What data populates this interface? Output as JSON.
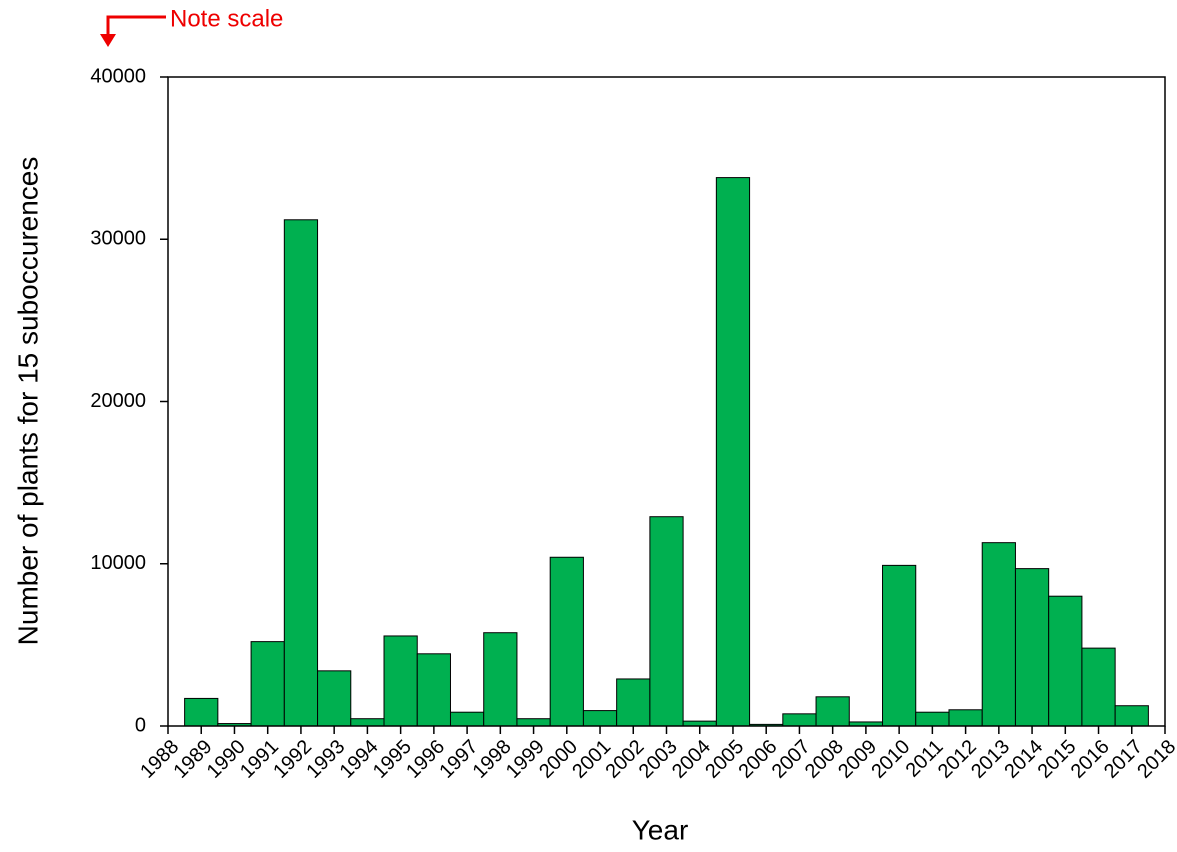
{
  "chart_data": {
    "type": "bar",
    "y_label": "Number of plants for 15 suboccurences",
    "x_label": "Year",
    "annotation": "Note scale",
    "annotation_color": "#ee0000",
    "color": "#00b050",
    "x": [
      1989,
      1990,
      1991,
      1992,
      1993,
      1994,
      1995,
      1996,
      1997,
      1998,
      1999,
      2000,
      2001,
      2002,
      2003,
      2004,
      2005,
      2006,
      2007,
      2008,
      2009,
      2010,
      2011,
      2012,
      2013,
      2014,
      2015,
      2016,
      2017
    ],
    "values": [
      1700,
      150,
      5200,
      31200,
      3400,
      450,
      5550,
      4450,
      850,
      5750,
      450,
      10400,
      950,
      2900,
      12900,
      300,
      33800,
      100,
      750,
      1800,
      250,
      9900,
      850,
      1000,
      11300,
      9700,
      8000,
      4800,
      1250
    ],
    "xlim": [
      1988,
      2018
    ],
    "xticks": [
      1988,
      1989,
      1990,
      1991,
      1992,
      1993,
      1994,
      1995,
      1996,
      1997,
      1998,
      1999,
      2000,
      2001,
      2002,
      2003,
      2004,
      2005,
      2006,
      2007,
      2008,
      2009,
      2010,
      2011,
      2012,
      2013,
      2014,
      2015,
      2016,
      2017,
      2018
    ],
    "ylim": [
      0,
      40000
    ],
    "yticks": [
      0,
      10000,
      20000,
      30000,
      40000
    ],
    "grid": false
  }
}
